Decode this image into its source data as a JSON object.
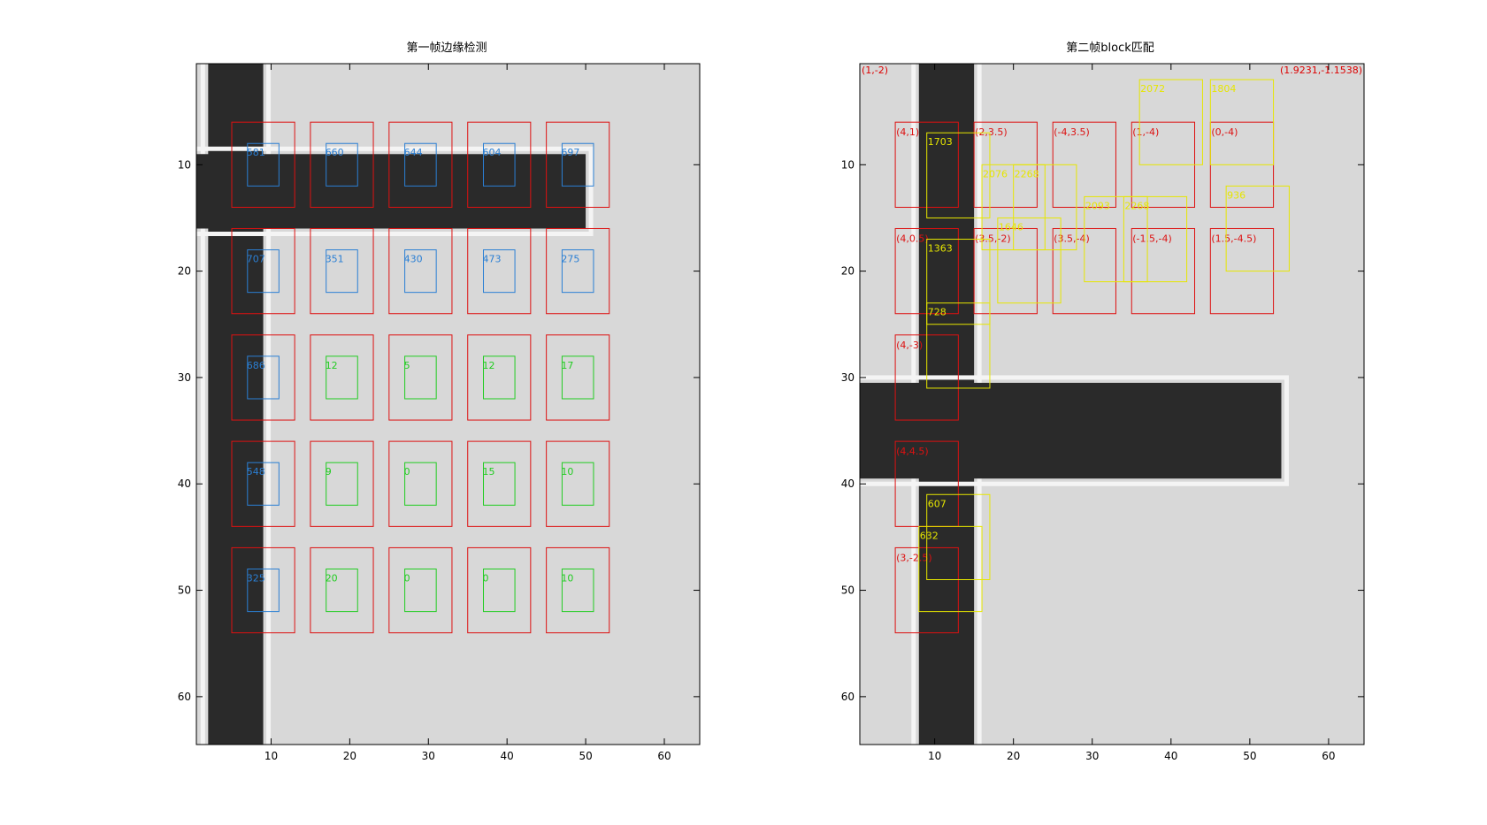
{
  "panels": [
    {
      "id": "p1",
      "title": "第一帧边缘检测",
      "x_ticks": [
        "10",
        "20",
        "30",
        "40",
        "50",
        "60"
      ],
      "y_ticks": [
        "10",
        "20",
        "30",
        "40",
        "50",
        "60"
      ],
      "axis_range": {
        "x": [
          0.5,
          64.5
        ],
        "y": [
          0.5,
          64.5
        ]
      },
      "image": {
        "background": "#d8d8d8",
        "dark_bars": [
          {
            "x": [
              2,
              9
            ],
            "y": [
              0.5,
              64.5
            ]
          },
          {
            "x": [
              0.5,
              50
            ],
            "y": [
              9,
              16
            ]
          }
        ]
      },
      "red_boxes": [
        {
          "col": 1,
          "row": 1
        },
        {
          "col": 2,
          "row": 1
        },
        {
          "col": 3,
          "row": 1
        },
        {
          "col": 4,
          "row": 1
        },
        {
          "col": 5,
          "row": 1
        },
        {
          "col": 1,
          "row": 2
        },
        {
          "col": 2,
          "row": 2
        },
        {
          "col": 3,
          "row": 2
        },
        {
          "col": 4,
          "row": 2
        },
        {
          "col": 5,
          "row": 2
        },
        {
          "col": 1,
          "row": 3
        },
        {
          "col": 2,
          "row": 3
        },
        {
          "col": 3,
          "row": 3
        },
        {
          "col": 4,
          "row": 3
        },
        {
          "col": 5,
          "row": 3
        },
        {
          "col": 1,
          "row": 4
        },
        {
          "col": 2,
          "row": 4
        },
        {
          "col": 3,
          "row": 4
        },
        {
          "col": 4,
          "row": 4
        },
        {
          "col": 5,
          "row": 4
        },
        {
          "col": 1,
          "row": 5
        },
        {
          "col": 2,
          "row": 5
        },
        {
          "col": 3,
          "row": 5
        },
        {
          "col": 4,
          "row": 5
        },
        {
          "col": 5,
          "row": 5
        }
      ],
      "inner_boxes": [
        {
          "col": 1,
          "row": 1,
          "label": "581",
          "color": "#2a7fd4"
        },
        {
          "col": 2,
          "row": 1,
          "label": "660",
          "color": "#2a7fd4"
        },
        {
          "col": 3,
          "row": 1,
          "label": "644",
          "color": "#2a7fd4"
        },
        {
          "col": 4,
          "row": 1,
          "label": "604",
          "color": "#2a7fd4"
        },
        {
          "col": 5,
          "row": 1,
          "label": "697",
          "color": "#2a7fd4"
        },
        {
          "col": 1,
          "row": 2,
          "label": "707",
          "color": "#2a7fd4"
        },
        {
          "col": 2,
          "row": 2,
          "label": "351",
          "color": "#2a7fd4"
        },
        {
          "col": 3,
          "row": 2,
          "label": "430",
          "color": "#2a7fd4"
        },
        {
          "col": 4,
          "row": 2,
          "label": "473",
          "color": "#2a7fd4"
        },
        {
          "col": 5,
          "row": 2,
          "label": "275",
          "color": "#2a7fd4"
        },
        {
          "col": 1,
          "row": 3,
          "label": "686",
          "color": "#2a7fd4"
        },
        {
          "col": 2,
          "row": 3,
          "label": "12",
          "color": "#22cc22"
        },
        {
          "col": 3,
          "row": 3,
          "label": "5",
          "color": "#22cc22"
        },
        {
          "col": 4,
          "row": 3,
          "label": "12",
          "color": "#22cc22"
        },
        {
          "col": 5,
          "row": 3,
          "label": "17",
          "color": "#22cc22"
        },
        {
          "col": 1,
          "row": 4,
          "label": "548",
          "color": "#2a7fd4"
        },
        {
          "col": 2,
          "row": 4,
          "label": "9",
          "color": "#22cc22"
        },
        {
          "col": 3,
          "row": 4,
          "label": "0",
          "color": "#22cc22"
        },
        {
          "col": 4,
          "row": 4,
          "label": "15",
          "color": "#22cc22"
        },
        {
          "col": 5,
          "row": 4,
          "label": "10",
          "color": "#22cc22"
        },
        {
          "col": 1,
          "row": 5,
          "label": "325",
          "color": "#2a7fd4"
        },
        {
          "col": 2,
          "row": 5,
          "label": "20",
          "color": "#22cc22"
        },
        {
          "col": 3,
          "row": 5,
          "label": "0",
          "color": "#22cc22"
        },
        {
          "col": 4,
          "row": 5,
          "label": "0",
          "color": "#22cc22"
        },
        {
          "col": 5,
          "row": 5,
          "label": "10",
          "color": "#22cc22"
        }
      ]
    },
    {
      "id": "p2",
      "title": "第二帧block匹配",
      "x_ticks": [
        "10",
        "20",
        "30",
        "40",
        "50",
        "60"
      ],
      "y_ticks": [
        "10",
        "20",
        "30",
        "40",
        "50",
        "60"
      ],
      "axis_range": {
        "x": [
          0.5,
          64.5
        ],
        "y": [
          0.5,
          64.5
        ]
      },
      "image": {
        "background": "#d8d8d8",
        "dark_bars": [
          {
            "x": [
              8,
              15
            ],
            "y": [
              0.5,
              64.5
            ]
          },
          {
            "x": [
              0.5,
              54
            ],
            "y": [
              30.5,
              39.5
            ]
          }
        ]
      },
      "corner_labels": [
        {
          "text": "(1,-2)",
          "anchor": "left",
          "color": "#dd0000"
        },
        {
          "text": "(1.9231,-1.1538)",
          "anchor": "right",
          "color": "#dd0000"
        }
      ],
      "red_boxes": [
        {
          "col": 1,
          "row": 1,
          "label": "(4,1)"
        },
        {
          "col": 2,
          "row": 1,
          "label": "(2,3.5)"
        },
        {
          "col": 3,
          "row": 1,
          "label": "(-4,3.5)"
        },
        {
          "col": 4,
          "row": 1,
          "label": "(1,-4)"
        },
        {
          "col": 5,
          "row": 1,
          "label": "(0,-4)"
        },
        {
          "col": 1,
          "row": 2,
          "label": "(4,0.5)"
        },
        {
          "col": 2,
          "row": 2,
          "label": "(3.5,-2)"
        },
        {
          "col": 3,
          "row": 2,
          "label": "(3.5,-4)"
        },
        {
          "col": 4,
          "row": 2,
          "label": "(-1.5,-4)"
        },
        {
          "col": 5,
          "row": 2,
          "label": "(1.5,-4.5)"
        },
        {
          "col": 1,
          "row": 3,
          "label": "(4,-3)"
        },
        {
          "col": 1,
          "row": 4,
          "label": "(4,4.5)"
        },
        {
          "col": 1,
          "row": 5,
          "label": "(3,-2.5)"
        }
      ],
      "yellow_boxes": [
        {
          "x": 9,
          "y": 7,
          "label": "1703"
        },
        {
          "x": 16,
          "y": 10,
          "label": "2076"
        },
        {
          "x": 20,
          "y": 10,
          "label": "2268"
        },
        {
          "x": 18,
          "y": 15,
          "label": "1646"
        },
        {
          "x": 29,
          "y": 13,
          "label": "2093"
        },
        {
          "x": 34,
          "y": 13,
          "label": "2268"
        },
        {
          "x": 36,
          "y": 2,
          "label": "2072"
        },
        {
          "x": 45,
          "y": 2,
          "label": "1804"
        },
        {
          "x": 47,
          "y": 12,
          "label": "936"
        },
        {
          "x": 9,
          "y": 17,
          "label": "1363"
        },
        {
          "x": 9,
          "y": 23,
          "label": "728"
        },
        {
          "x": 9,
          "y": 41,
          "label": "607"
        },
        {
          "x": 8,
          "y": 44,
          "label": "632"
        }
      ]
    }
  ],
  "colors": {
    "red": "#dd1111",
    "yellow": "#e6e600",
    "blue": "#2a7fd4",
    "green": "#22cc22"
  }
}
